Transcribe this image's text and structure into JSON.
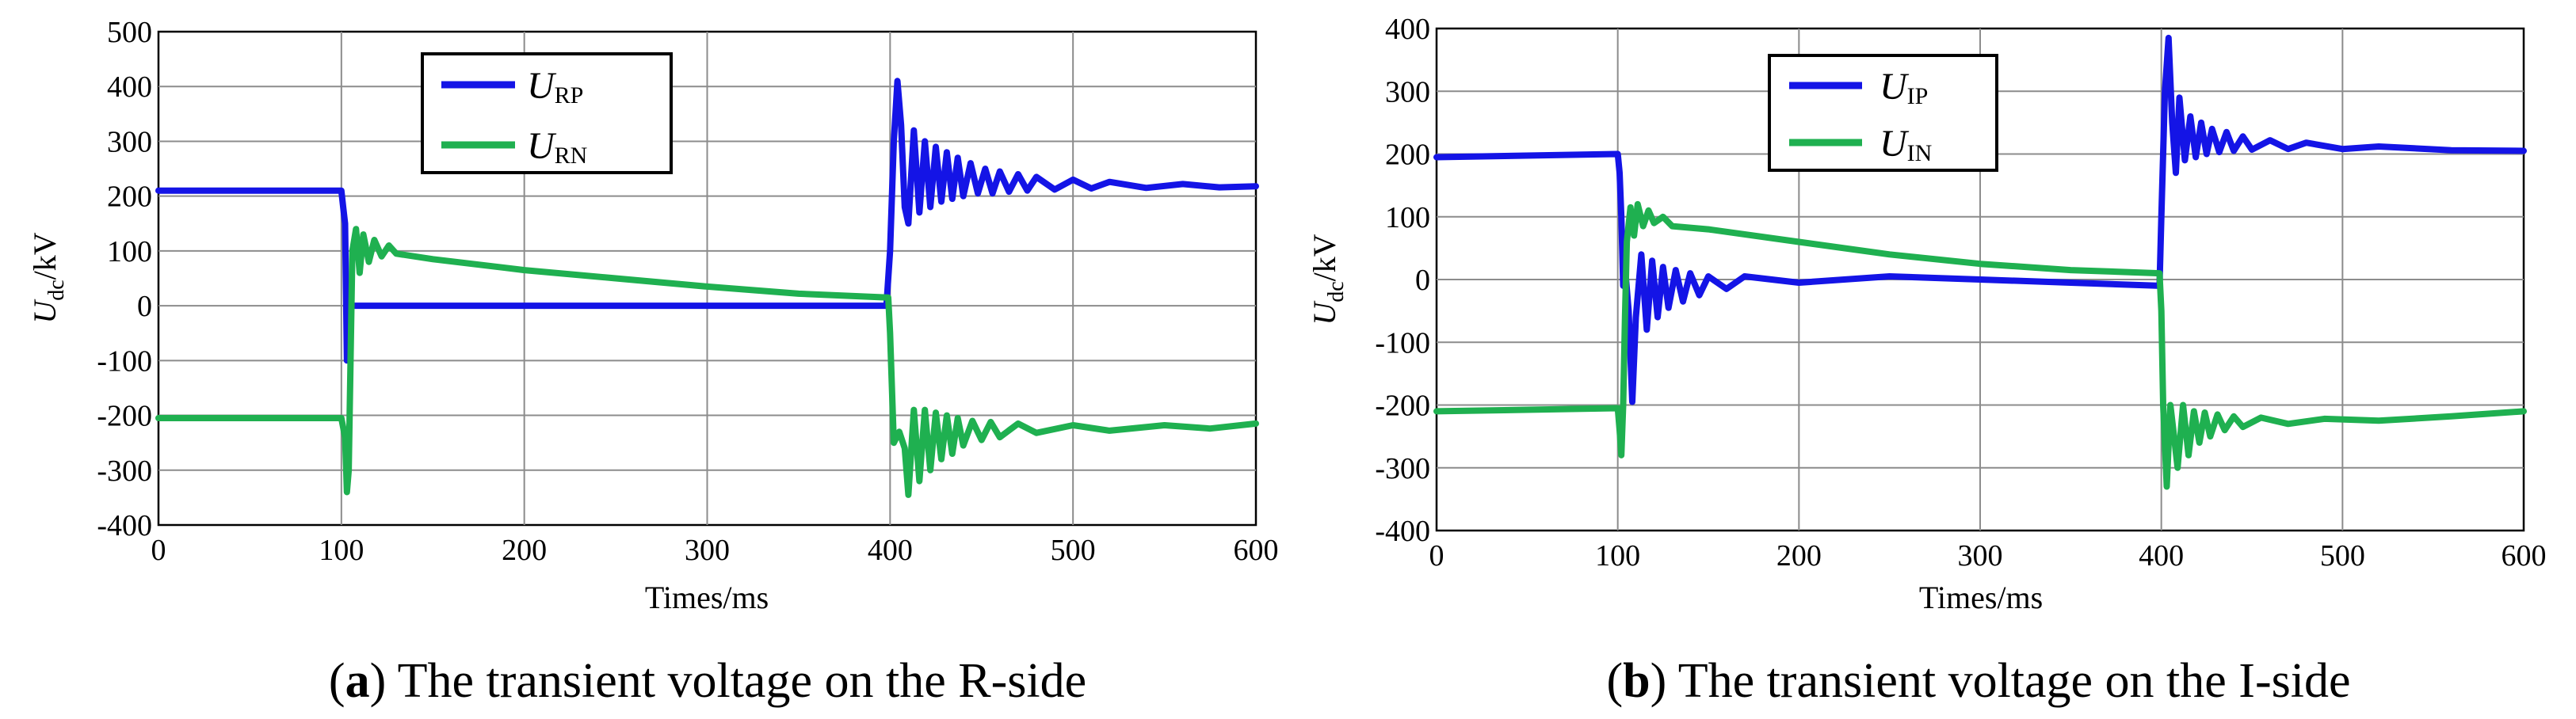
{
  "chart_data": [
    {
      "type": "line",
      "id": "a",
      "caption_letter": "a",
      "caption_text": " The transient voltage on the R-side",
      "xlabel": "Times/ms",
      "ylabel_main": "U",
      "ylabel_sub": "dc",
      "ylabel_unit": "/kV",
      "xlim": [
        0,
        600
      ],
      "ylim": [
        -400,
        500
      ],
      "xticks": [
        0,
        100,
        200,
        300,
        400,
        500,
        600
      ],
      "yticks": [
        500,
        400,
        300,
        200,
        100,
        0,
        -100,
        -200,
        -300,
        -400
      ],
      "legend_position": "top-center",
      "series": [
        {
          "name_main": "U",
          "name_sub": "RP",
          "color": "#1414e6",
          "points": [
            [
              0,
              210
            ],
            [
              100,
              210
            ],
            [
              101,
              180
            ],
            [
              102,
              150
            ],
            [
              103,
              -100
            ],
            [
              104,
              -80
            ],
            [
              105,
              0
            ],
            [
              398,
              0
            ],
            [
              400,
              100
            ],
            [
              402,
              300
            ],
            [
              404,
              410
            ],
            [
              406,
              330
            ],
            [
              408,
              180
            ],
            [
              410,
              150
            ],
            [
              413,
              320
            ],
            [
              416,
              170
            ],
            [
              419,
              300
            ],
            [
              422,
              180
            ],
            [
              425,
              290
            ],
            [
              428,
              190
            ],
            [
              431,
              280
            ],
            [
              434,
              195
            ],
            [
              437,
              270
            ],
            [
              440,
              200
            ],
            [
              444,
              260
            ],
            [
              448,
              205
            ],
            [
              452,
              250
            ],
            [
              456,
              205
            ],
            [
              460,
              245
            ],
            [
              465,
              208
            ],
            [
              470,
              240
            ],
            [
              475,
              210
            ],
            [
              480,
              235
            ],
            [
              490,
              212
            ],
            [
              500,
              230
            ],
            [
              510,
              214
            ],
            [
              520,
              226
            ],
            [
              540,
              215
            ],
            [
              560,
              222
            ],
            [
              580,
              216
            ],
            [
              600,
              218
            ]
          ]
        },
        {
          "name_main": "U",
          "name_sub": "RN",
          "color": "#1fb050",
          "points": [
            [
              0,
              -205
            ],
            [
              100,
              -205
            ],
            [
              102,
              -240
            ],
            [
              103,
              -340
            ],
            [
              104,
              -300
            ],
            [
              105,
              -100
            ],
            [
              106,
              100
            ],
            [
              108,
              140
            ],
            [
              110,
              60
            ],
            [
              112,
              130
            ],
            [
              115,
              80
            ],
            [
              118,
              120
            ],
            [
              122,
              90
            ],
            [
              126,
              110
            ],
            [
              130,
              95
            ],
            [
              150,
              85
            ],
            [
              200,
              65
            ],
            [
              250,
              50
            ],
            [
              300,
              35
            ],
            [
              350,
              22
            ],
            [
              399,
              15
            ],
            [
              400,
              -50
            ],
            [
              402,
              -250
            ],
            [
              405,
              -230
            ],
            [
              408,
              -260
            ],
            [
              410,
              -345
            ],
            [
              413,
              -190
            ],
            [
              416,
              -320
            ],
            [
              419,
              -190
            ],
            [
              422,
              -300
            ],
            [
              425,
              -195
            ],
            [
              428,
              -280
            ],
            [
              431,
              -200
            ],
            [
              434,
              -270
            ],
            [
              437,
              -205
            ],
            [
              440,
              -255
            ],
            [
              445,
              -210
            ],
            [
              450,
              -245
            ],
            [
              455,
              -212
            ],
            [
              460,
              -240
            ],
            [
              470,
              -215
            ],
            [
              480,
              -232
            ],
            [
              500,
              -218
            ],
            [
              520,
              -228
            ],
            [
              550,
              -218
            ],
            [
              575,
              -224
            ],
            [
              600,
              -215
            ]
          ]
        }
      ]
    },
    {
      "type": "line",
      "id": "b",
      "caption_letter": "b",
      "caption_text": " The transient voltage on the I-side",
      "xlabel": "Times/ms",
      "ylabel_main": "U",
      "ylabel_sub": "dc",
      "ylabel_unit": "/kV",
      "xlim": [
        0,
        600
      ],
      "ylim": [
        -400,
        400
      ],
      "xticks": [
        0,
        100,
        200,
        300,
        400,
        500,
        600
      ],
      "yticks": [
        400,
        300,
        200,
        100,
        0,
        -100,
        -200,
        -300,
        -400
      ],
      "legend_position": "top-center",
      "series": [
        {
          "name_main": "U",
          "name_sub": "IP",
          "color": "#1414e6",
          "points": [
            [
              0,
              195
            ],
            [
              100,
              200
            ],
            [
              101,
              170
            ],
            [
              102,
              100
            ],
            [
              103,
              -10
            ],
            [
              104,
              20
            ],
            [
              106,
              -50
            ],
            [
              108,
              -195
            ],
            [
              110,
              -60
            ],
            [
              113,
              40
            ],
            [
              116,
              -80
            ],
            [
              119,
              30
            ],
            [
              122,
              -60
            ],
            [
              125,
              20
            ],
            [
              128,
              -45
            ],
            [
              132,
              15
            ],
            [
              136,
              -35
            ],
            [
              140,
              10
            ],
            [
              145,
              -25
            ],
            [
              150,
              5
            ],
            [
              160,
              -15
            ],
            [
              170,
              5
            ],
            [
              200,
              -5
            ],
            [
              250,
              5
            ],
            [
              300,
              0
            ],
            [
              350,
              -5
            ],
            [
              399,
              -10
            ],
            [
              400,
              100
            ],
            [
              402,
              300
            ],
            [
              404,
              385
            ],
            [
              406,
              250
            ],
            [
              408,
              170
            ],
            [
              410,
              290
            ],
            [
              413,
              190
            ],
            [
              416,
              260
            ],
            [
              419,
              195
            ],
            [
              422,
              250
            ],
            [
              425,
              200
            ],
            [
              428,
              240
            ],
            [
              432,
              203
            ],
            [
              436,
              235
            ],
            [
              440,
              205
            ],
            [
              445,
              228
            ],
            [
              450,
              207
            ],
            [
              460,
              222
            ],
            [
              470,
              208
            ],
            [
              480,
              218
            ],
            [
              500,
              208
            ],
            [
              520,
              212
            ],
            [
              560,
              206
            ],
            [
              600,
              205
            ]
          ]
        },
        {
          "name_main": "U",
          "name_sub": "IN",
          "color": "#1fb050",
          "points": [
            [
              0,
              -210
            ],
            [
              100,
              -205
            ],
            [
              101,
              -240
            ],
            [
              102,
              -280
            ],
            [
              103,
              -200
            ],
            [
              104,
              -60
            ],
            [
              105,
              60
            ],
            [
              107,
              115
            ],
            [
              109,
              70
            ],
            [
              111,
              120
            ],
            [
              114,
              85
            ],
            [
              117,
              110
            ],
            [
              120,
              90
            ],
            [
              125,
              100
            ],
            [
              130,
              85
            ],
            [
              150,
              80
            ],
            [
              200,
              60
            ],
            [
              250,
              40
            ],
            [
              300,
              25
            ],
            [
              350,
              15
            ],
            [
              399,
              10
            ],
            [
              400,
              -50
            ],
            [
              401,
              -200
            ],
            [
              403,
              -330
            ],
            [
              405,
              -200
            ],
            [
              407,
              -250
            ],
            [
              409,
              -300
            ],
            [
              412,
              -200
            ],
            [
              415,
              -280
            ],
            [
              418,
              -210
            ],
            [
              421,
              -260
            ],
            [
              424,
              -212
            ],
            [
              427,
              -250
            ],
            [
              431,
              -215
            ],
            [
              435,
              -240
            ],
            [
              440,
              -218
            ],
            [
              445,
              -235
            ],
            [
              455,
              -220
            ],
            [
              470,
              -230
            ],
            [
              490,
              -222
            ],
            [
              520,
              -225
            ],
            [
              560,
              -218
            ],
            [
              600,
              -210
            ]
          ]
        }
      ]
    }
  ]
}
